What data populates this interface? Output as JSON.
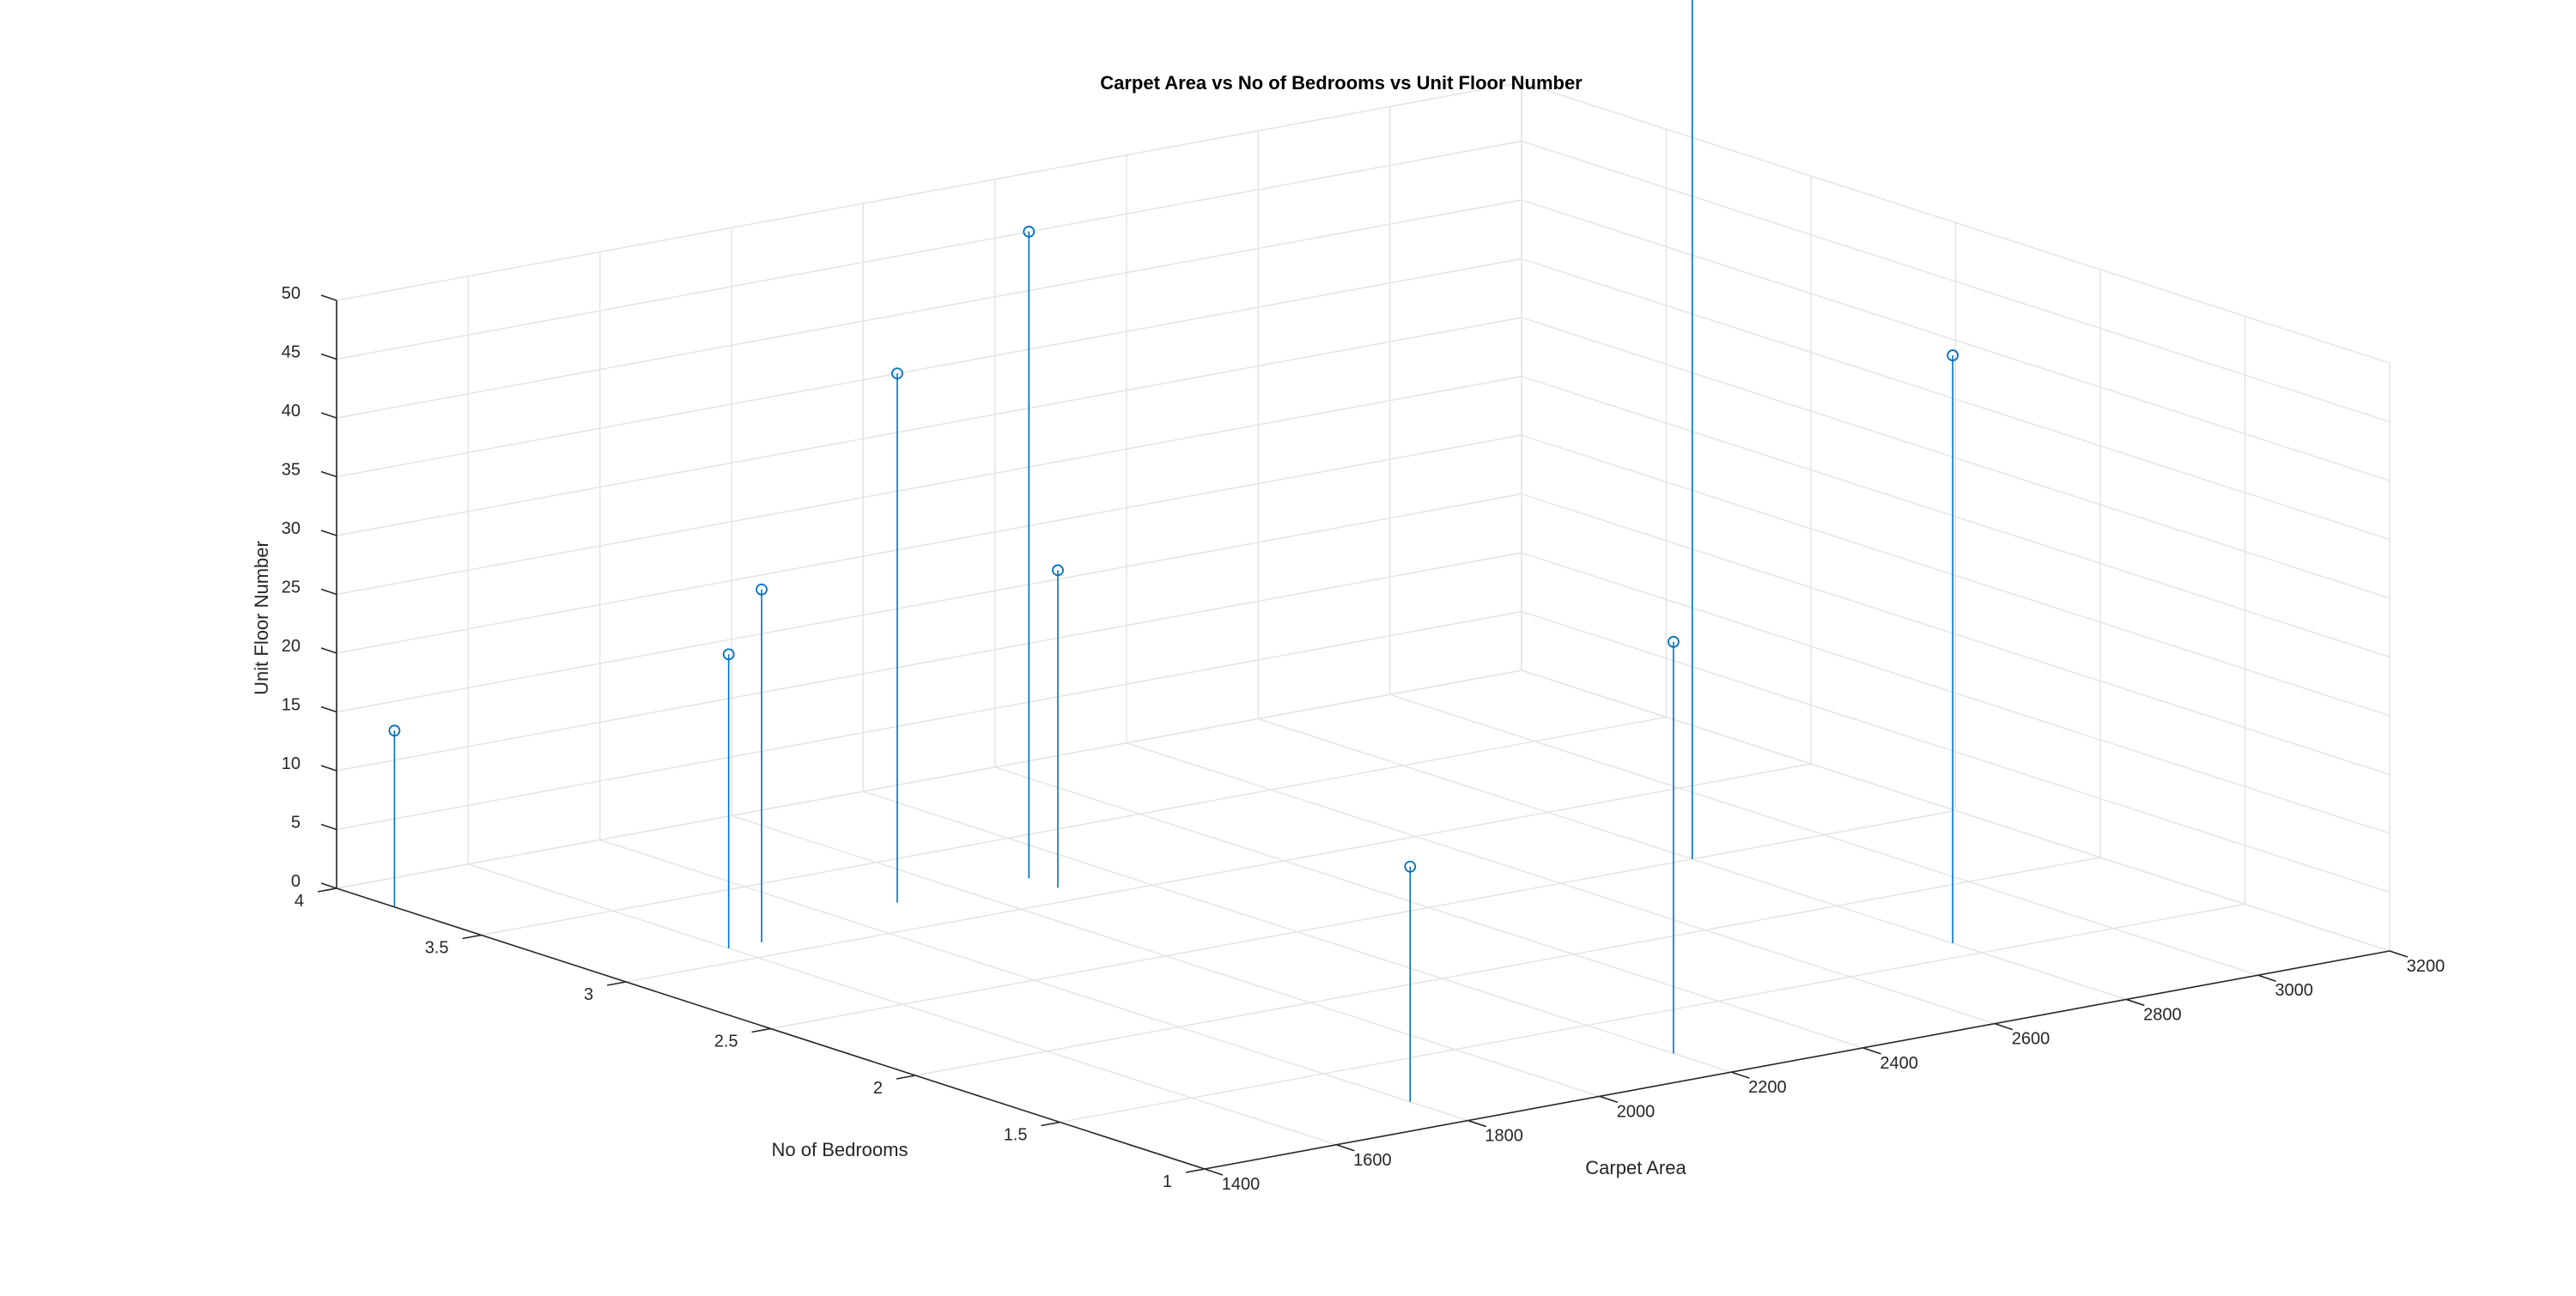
{
  "chart_data": {
    "type": "stem3",
    "title": "Carpet Area vs No of Bedrooms vs Unit Floor Number",
    "xlabel": "Carpet Area",
    "ylabel": "No of Bedrooms",
    "zlabel": "Unit Floor Number",
    "xlim": [
      1400,
      3200
    ],
    "ylim": [
      1,
      4
    ],
    "zlim": [
      0,
      50
    ],
    "x_ticks": [
      "1400",
      "1600",
      "1800",
      "2000",
      "2200",
      "2400",
      "2600",
      "2800",
      "3000",
      "3200"
    ],
    "y_ticks": [
      "1",
      "1.5",
      "2",
      "2.5",
      "3",
      "3.5",
      "4"
    ],
    "z_ticks": [
      "0",
      "5",
      "10",
      "15",
      "20",
      "25",
      "30",
      "35",
      "40",
      "45",
      "50"
    ],
    "grid": true,
    "series_color": "#0072bd",
    "points": [
      {
        "x": 1400,
        "y": 3.8,
        "z": 15
      },
      {
        "x": 1600,
        "y": 3.1,
        "z": 25
      },
      {
        "x": 1650,
        "y": 3.1,
        "z": 30
      },
      {
        "x": 1900,
        "y": 3.2,
        "z": 45
      },
      {
        "x": 2100,
        "y": 3.2,
        "z": 55
      },
      {
        "x": 2100,
        "y": 3.1,
        "z": 27
      },
      {
        "x": 1800,
        "y": 1.2,
        "z": 20
      },
      {
        "x": 2200,
        "y": 1.2,
        "z": 35
      },
      {
        "x": 2800,
        "y": 1.6,
        "z": 50
      },
      {
        "x": 2800,
        "y": 2.5,
        "z": 75
      }
    ]
  }
}
